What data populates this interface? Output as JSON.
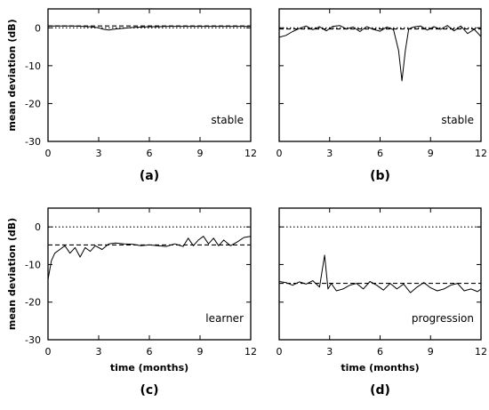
{
  "figure": {
    "background": "#ffffff",
    "line_color": "#000000"
  },
  "chart_data": [
    {
      "id": "a",
      "type": "line",
      "caption": "(a)",
      "annotation": "stable",
      "xlabel": "",
      "ylabel": "mean deviation (dB)",
      "xlim": [
        0,
        12
      ],
      "ylim": [
        -30,
        5
      ],
      "xticks": [
        0,
        3,
        6,
        9,
        12
      ],
      "yticks": [
        0,
        -10,
        -20,
        -30
      ],
      "y_tick_labels_shown": true,
      "reference_lines": [
        {
          "style": "dotted",
          "y": 0
        },
        {
          "style": "dashed",
          "y": 0.5
        }
      ],
      "series": [
        {
          "style": "solid",
          "x": [
            0,
            0.5,
            1,
            1.5,
            2,
            2.5,
            3,
            3.3,
            3.6,
            4,
            4.5,
            5,
            5.5,
            6,
            6.5,
            7,
            7.5,
            8,
            8.5,
            9,
            9.5,
            10,
            10.5,
            11,
            11.5,
            12
          ],
          "y": [
            0.5,
            0.5,
            0.5,
            0.5,
            0.4,
            0.3,
            0.0,
            -0.4,
            -0.6,
            -0.3,
            -0.1,
            0.1,
            0.2,
            0.3,
            0.3,
            0.4,
            0.4,
            0.4,
            0.4,
            0.4,
            0.4,
            0.4,
            0.4,
            0.4,
            0.4,
            0.4
          ]
        }
      ]
    },
    {
      "id": "b",
      "type": "line",
      "caption": "(b)",
      "annotation": "stable",
      "xlabel": "",
      "ylabel": "",
      "xlim": [
        0,
        12
      ],
      "ylim": [
        -30,
        5
      ],
      "xticks": [
        0,
        3,
        6,
        9,
        12
      ],
      "yticks": [
        0,
        -10,
        -20,
        -30
      ],
      "y_tick_labels_shown": false,
      "reference_lines": [
        {
          "style": "dotted",
          "y": 0
        },
        {
          "style": "dashed",
          "y": -0.3
        }
      ],
      "series": [
        {
          "style": "solid",
          "x": [
            0,
            0.4,
            0.8,
            1.2,
            1.6,
            2.0,
            2.4,
            2.8,
            3.2,
            3.6,
            4.0,
            4.4,
            4.8,
            5.2,
            5.6,
            6.0,
            6.4,
            6.8,
            7.1,
            7.3,
            7.5,
            7.7,
            8.0,
            8.4,
            8.8,
            9.2,
            9.6,
            10.0,
            10.4,
            10.8,
            11.2,
            11.6,
            12.0
          ],
          "y": [
            -2.5,
            -2.0,
            -1.0,
            -0.2,
            0.5,
            -0.5,
            0.3,
            -0.8,
            0.4,
            0.6,
            -0.3,
            0.2,
            -1.0,
            0.3,
            -0.4,
            -0.9,
            0.2,
            -0.5,
            -6.0,
            -14.0,
            -6.0,
            -0.3,
            0.2,
            0.5,
            -0.6,
            0.3,
            -0.4,
            0.6,
            -0.8,
            0.5,
            -1.5,
            -0.4,
            -2.3
          ]
        }
      ]
    },
    {
      "id": "c",
      "type": "line",
      "caption": "(c)",
      "annotation": "learner",
      "xlabel": "time (months)",
      "ylabel": "mean deviation (dB)",
      "xlim": [
        0,
        12
      ],
      "ylim": [
        -30,
        5
      ],
      "xticks": [
        0,
        3,
        6,
        9,
        12
      ],
      "yticks": [
        0,
        -10,
        -20,
        -30
      ],
      "y_tick_labels_shown": true,
      "reference_lines": [
        {
          "style": "dotted",
          "y": 0
        },
        {
          "style": "dashed",
          "y": -4.8
        }
      ],
      "series": [
        {
          "style": "solid",
          "x": [
            0,
            0.2,
            0.4,
            0.7,
            1.0,
            1.3,
            1.6,
            1.9,
            2.2,
            2.5,
            2.8,
            3.2,
            3.6,
            4.0,
            4.5,
            5.0,
            5.5,
            6.0,
            6.5,
            7.0,
            7.5,
            8.0,
            8.3,
            8.6,
            8.9,
            9.2,
            9.5,
            9.8,
            10.1,
            10.4,
            10.8,
            11.2,
            11.6,
            12.0
          ],
          "y": [
            -14.0,
            -9.0,
            -7.0,
            -6.0,
            -5.0,
            -7.0,
            -5.5,
            -8.0,
            -5.5,
            -6.5,
            -5.0,
            -6.0,
            -4.5,
            -4.3,
            -4.5,
            -4.6,
            -5.0,
            -4.8,
            -5.0,
            -5.2,
            -4.5,
            -5.2,
            -3.0,
            -5.0,
            -3.5,
            -2.5,
            -4.5,
            -3.0,
            -5.0,
            -3.5,
            -5.0,
            -4.0,
            -2.8,
            -2.5
          ]
        }
      ]
    },
    {
      "id": "d",
      "type": "line",
      "caption": "(d)",
      "annotation": "progression",
      "xlabel": "time (months)",
      "ylabel": "",
      "xlim": [
        0,
        12
      ],
      "ylim": [
        -30,
        5
      ],
      "xticks": [
        0,
        3,
        6,
        9,
        12
      ],
      "yticks": [
        0,
        -10,
        -20,
        -30
      ],
      "y_tick_labels_shown": false,
      "reference_lines": [
        {
          "style": "dotted",
          "y": 0
        },
        {
          "style": "dashed",
          "y": -15.0
        }
      ],
      "series": [
        {
          "style": "solid",
          "x": [
            0,
            0.4,
            0.8,
            1.2,
            1.6,
            2.0,
            2.4,
            2.7,
            2.9,
            3.1,
            3.4,
            3.8,
            4.2,
            4.6,
            5.0,
            5.4,
            5.8,
            6.2,
            6.6,
            7.0,
            7.4,
            7.8,
            8.2,
            8.6,
            9.0,
            9.4,
            9.8,
            10.2,
            10.6,
            11.0,
            11.4,
            11.8,
            12.0
          ],
          "y": [
            -14.5,
            -14.8,
            -15.5,
            -14.6,
            -15.2,
            -14.3,
            -16.0,
            -7.5,
            -16.5,
            -15.0,
            -17.0,
            -16.5,
            -15.5,
            -15.0,
            -16.5,
            -14.5,
            -15.5,
            -16.8,
            -15.0,
            -16.5,
            -15.2,
            -17.5,
            -16.0,
            -14.8,
            -16.2,
            -17.0,
            -16.5,
            -15.5,
            -15.0,
            -17.0,
            -16.5,
            -17.2,
            -16.5
          ]
        }
      ]
    }
  ]
}
